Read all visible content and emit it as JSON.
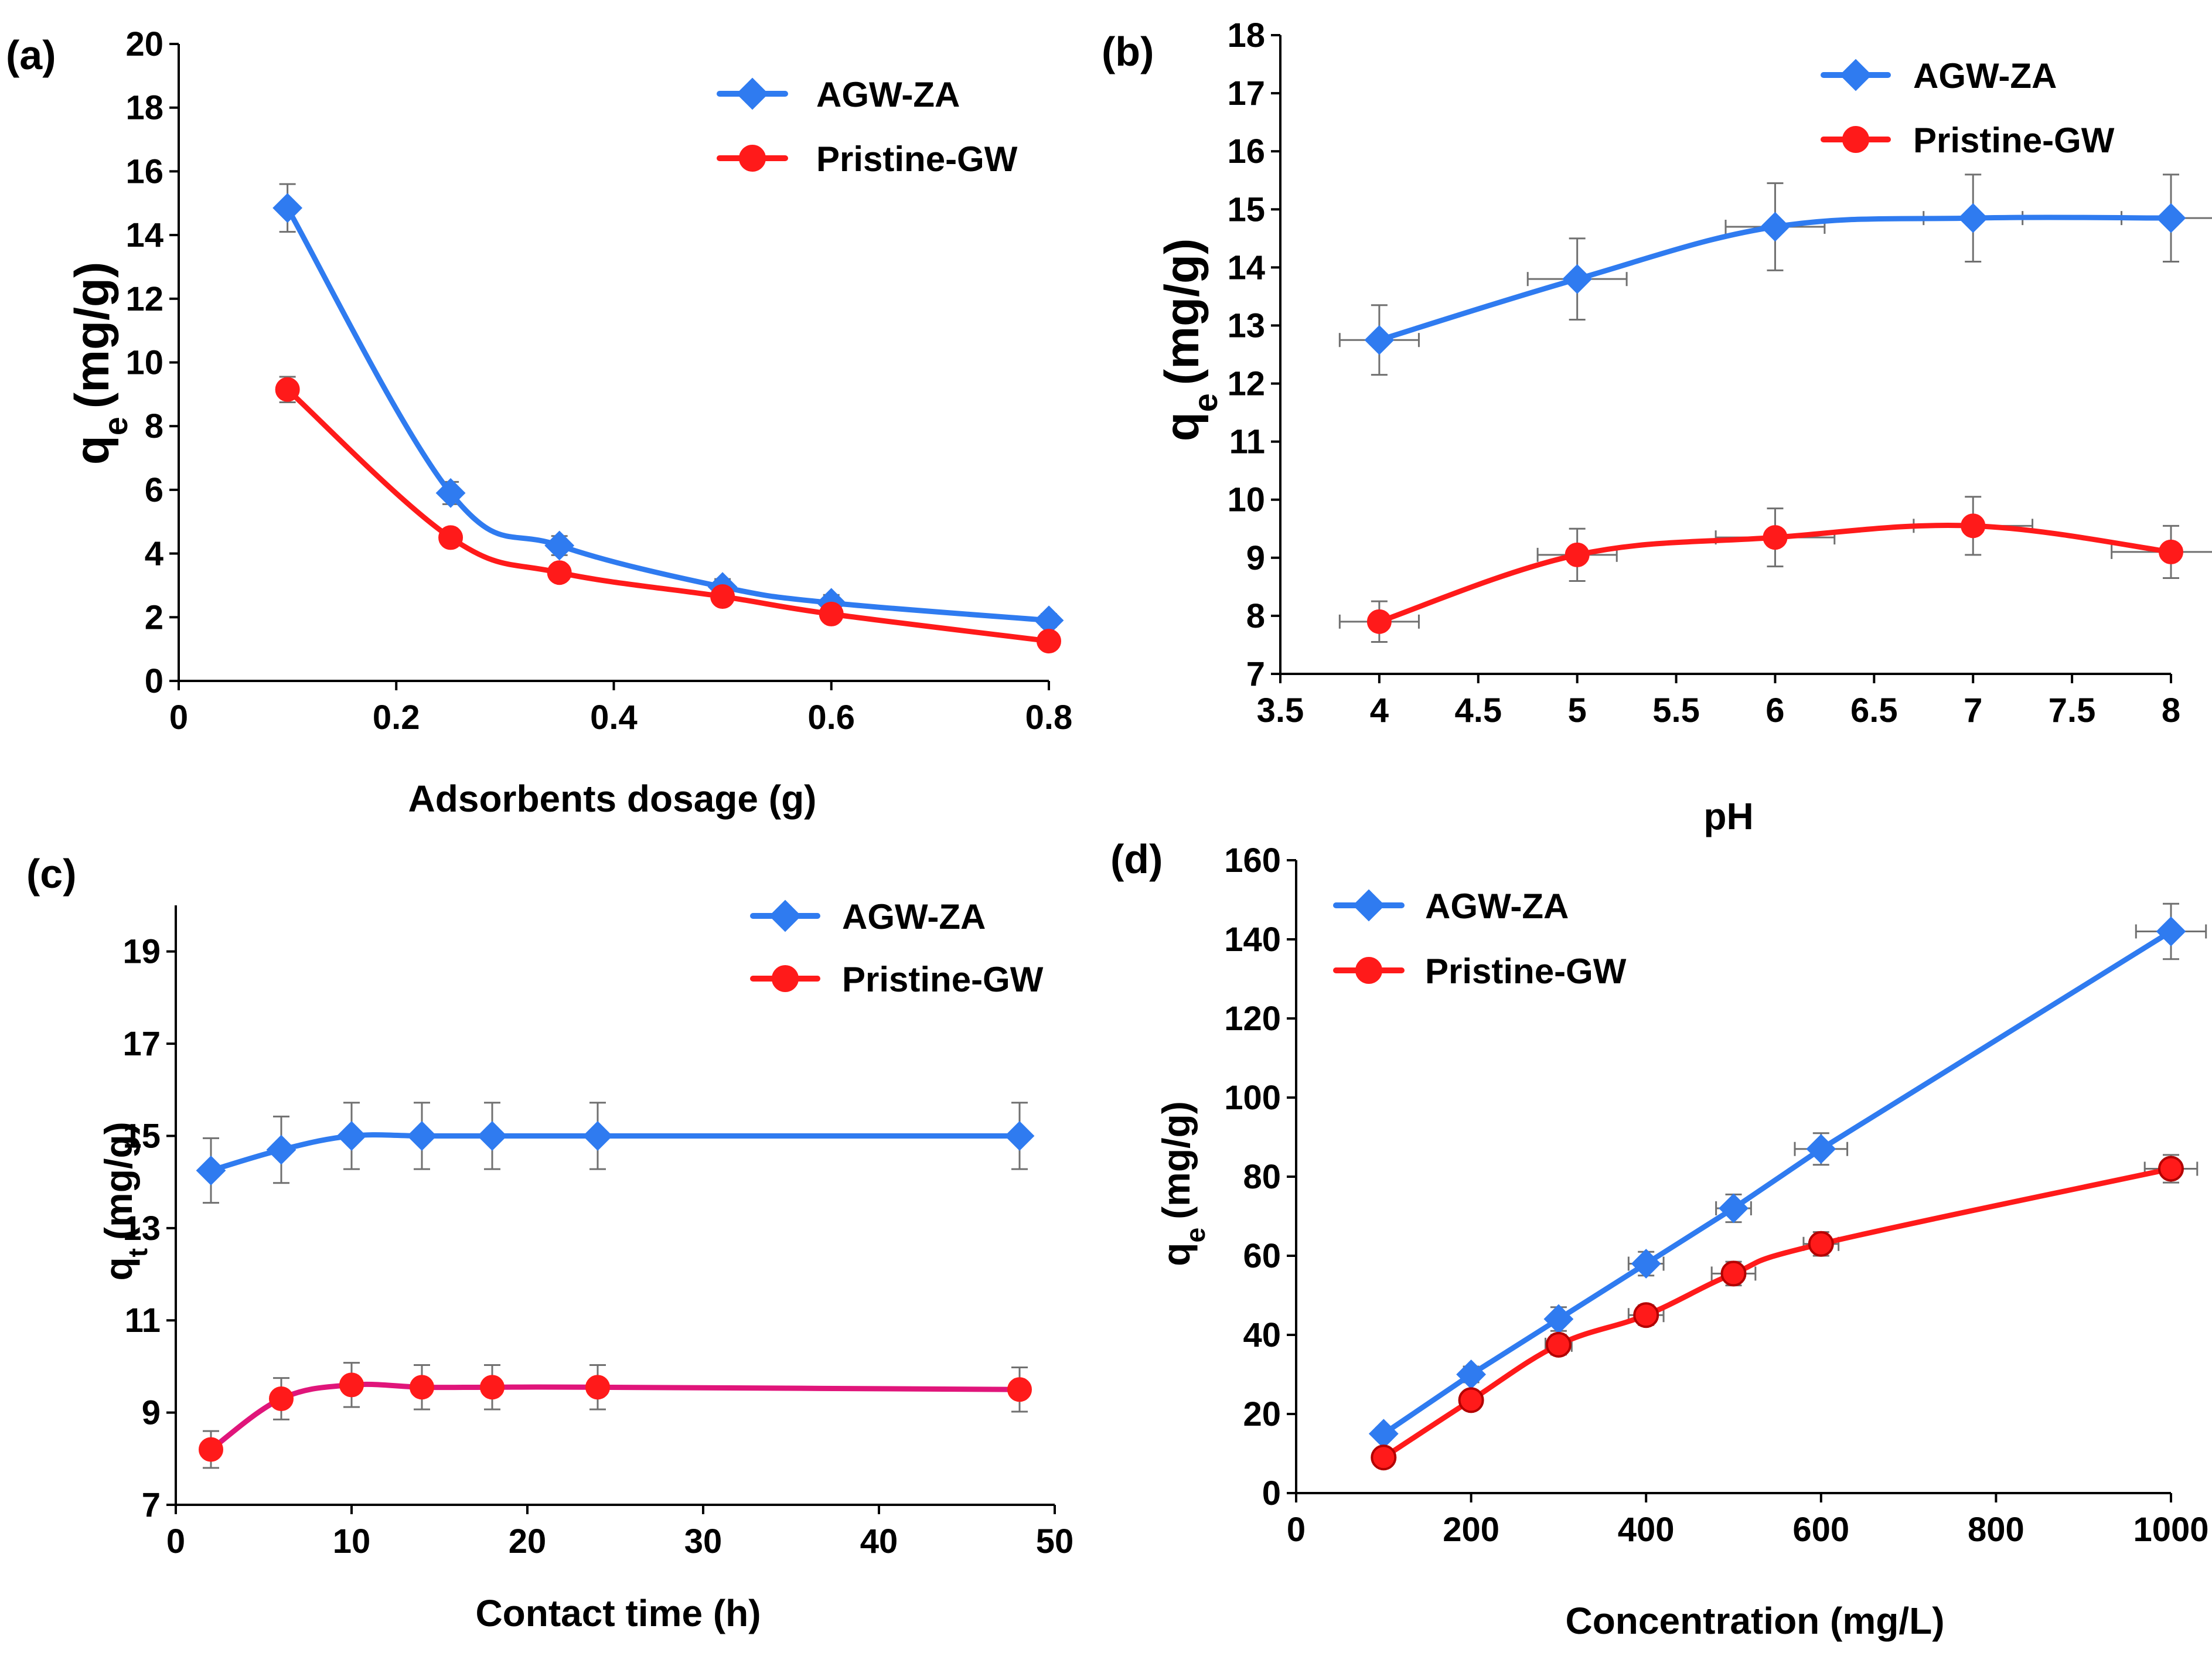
{
  "colors": {
    "agw": "#2f7bf0",
    "pristine": "#ff1a1a",
    "pristine_c": "#e0157a",
    "axis": "#000000",
    "error": "#707070"
  },
  "chart_data": [
    {
      "id": "a",
      "type": "line",
      "panel_label": "(a)",
      "xlabel": "Adsorbents dosage (g)",
      "ylabel_main": "q",
      "ylabel_sub": "e",
      "ylabel_unit": "(mg/g)",
      "xlim": [
        0,
        0.8
      ],
      "ylim": [
        0,
        20
      ],
      "xticks": [
        "0",
        "0.2",
        "0.4",
        "0.6",
        "0.8"
      ],
      "yticks": [
        "0",
        "2",
        "4",
        "6",
        "8",
        "10",
        "12",
        "14",
        "16",
        "18",
        "20"
      ],
      "legend_position": "top-right",
      "series": [
        {
          "name": "AGW-ZA",
          "marker": "diamond",
          "x": [
            0.1,
            0.25,
            0.35,
            0.5,
            0.6,
            0.8
          ],
          "y": [
            14.85,
            5.9,
            4.25,
            2.95,
            2.45,
            1.9
          ],
          "yerr": [
            0.75,
            0.35,
            0.3,
            0.25,
            0.25,
            0.2
          ]
        },
        {
          "name": "Pristine-GW",
          "marker": "circle",
          "x": [
            0.1,
            0.25,
            0.35,
            0.5,
            0.6,
            0.8
          ],
          "y": [
            9.15,
            4.5,
            3.4,
            2.65,
            2.1,
            1.25
          ],
          "yerr": [
            0.4,
            0.25,
            0.25,
            0.2,
            0.2,
            0.15
          ]
        }
      ]
    },
    {
      "id": "b",
      "type": "line",
      "panel_label": "(b)",
      "xlabel": "pH",
      "ylabel_main": "q",
      "ylabel_sub": "e",
      "ylabel_unit": "(mg/g)",
      "xlim": [
        3.5,
        8
      ],
      "ylim": [
        7,
        18
      ],
      "xticks": [
        "3.5",
        "4",
        "4.5",
        "5",
        "5.5",
        "6",
        "6.5",
        "7",
        "7.5",
        "8"
      ],
      "yticks": [
        "7",
        "8",
        "9",
        "10",
        "11",
        "12",
        "13",
        "14",
        "15",
        "16",
        "17",
        "18"
      ],
      "legend_position": "top-right",
      "series": [
        {
          "name": "AGW-ZA",
          "marker": "diamond",
          "x": [
            4,
            5,
            6,
            7,
            8
          ],
          "y": [
            12.75,
            13.8,
            14.7,
            14.85,
            14.85
          ],
          "yerr": [
            0.6,
            0.7,
            0.75,
            0.75,
            0.75
          ],
          "xerr": [
            0.2,
            0.25,
            0.25,
            0.25,
            0.25
          ]
        },
        {
          "name": "Pristine-GW",
          "marker": "circle",
          "x": [
            4,
            5,
            6,
            7,
            8
          ],
          "y": [
            7.9,
            9.05,
            9.35,
            9.55,
            9.1
          ],
          "yerr": [
            0.35,
            0.45,
            0.5,
            0.5,
            0.45
          ],
          "xerr": [
            0.2,
            0.2,
            0.3,
            0.3,
            0.3
          ]
        }
      ]
    },
    {
      "id": "c",
      "type": "line",
      "panel_label": "(c)",
      "xlabel": "Contact time (h)",
      "ylabel_main": "q",
      "ylabel_sub": "t",
      "ylabel_unit": "(mg/g)",
      "xlim": [
        0,
        50
      ],
      "ylim": [
        7,
        20
      ],
      "xticks": [
        "0",
        "10",
        "20",
        "30",
        "40",
        "50"
      ],
      "yticks": [
        "7",
        "9",
        "11",
        "13",
        "15",
        "17",
        "19"
      ],
      "ytick_values": [
        7,
        9,
        11,
        13,
        15,
        17,
        19
      ],
      "legend_position": "top-right",
      "series": [
        {
          "name": "AGW-ZA",
          "marker": "diamond",
          "x": [
            2,
            6,
            10,
            14,
            18,
            24,
            48
          ],
          "y": [
            14.25,
            14.7,
            15.0,
            15.0,
            15.0,
            15.0,
            15.0
          ],
          "yerr": [
            0.7,
            0.72,
            0.72,
            0.72,
            0.72,
            0.72,
            0.72
          ]
        },
        {
          "name": "Pristine-GW",
          "marker": "circle",
          "x": [
            2,
            6,
            10,
            14,
            18,
            24,
            48
          ],
          "y": [
            8.2,
            9.3,
            9.6,
            9.55,
            9.55,
            9.55,
            9.5
          ],
          "yerr": [
            0.4,
            0.45,
            0.48,
            0.48,
            0.48,
            0.48,
            0.48
          ]
        }
      ]
    },
    {
      "id": "d",
      "type": "line",
      "panel_label": "(d)",
      "xlabel": "Concentration (mg/L)",
      "ylabel_main": "q",
      "ylabel_sub": "e",
      "ylabel_unit": "(mg/g)",
      "xlim": [
        0,
        1000
      ],
      "ylim": [
        0,
        160
      ],
      "xticks": [
        "0",
        "200",
        "400",
        "600",
        "800",
        "1000"
      ],
      "yticks": [
        "0",
        "20",
        "40",
        "60",
        "80",
        "100",
        "120",
        "140",
        "160"
      ],
      "legend_position": "top-left",
      "series": [
        {
          "name": "AGW-ZA",
          "marker": "diamond",
          "x": [
            100,
            200,
            300,
            400,
            500,
            600,
            1000
          ],
          "y": [
            15,
            30,
            44,
            58,
            72,
            87,
            142
          ],
          "yerr": [
            1.5,
            2,
            3,
            3,
            3.5,
            4,
            7
          ],
          "xerr": [
            0,
            0,
            0,
            20,
            20,
            30,
            40
          ]
        },
        {
          "name": "Pristine-GW",
          "marker": "circle",
          "x": [
            100,
            200,
            300,
            400,
            500,
            600,
            1000
          ],
          "y": [
            9,
            23.5,
            37.5,
            45,
            55.5,
            63,
            82
          ],
          "yerr": [
            1.5,
            2,
            2.5,
            2.5,
            3,
            3,
            3.5
          ],
          "xerr": [
            0,
            0,
            15,
            20,
            25,
            20,
            30
          ]
        }
      ]
    }
  ]
}
